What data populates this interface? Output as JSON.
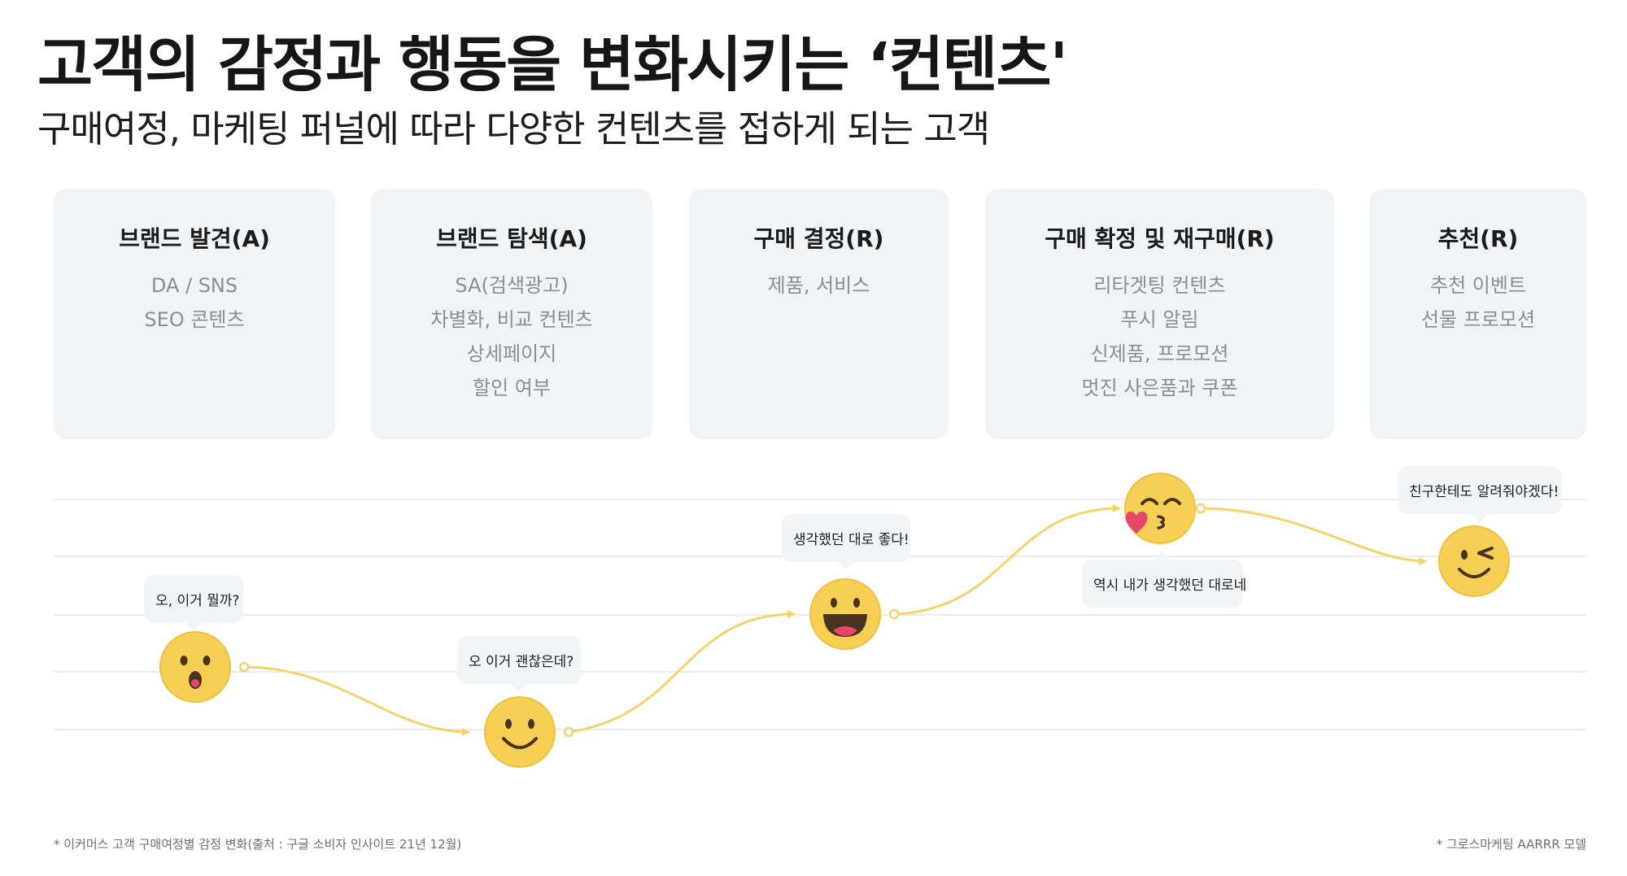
{
  "header": {
    "title": "고객의 감정과 행동을 변화시키는 ‘컨텐츠'",
    "subtitle": "구매여정, 마케팅 퍼널에 따라 다양한 컨텐츠를 접하게 되는 고객"
  },
  "stages": [
    {
      "title": "브랜드 발견(A)",
      "items": [
        "DA / SNS",
        "SEO 콘텐츠"
      ]
    },
    {
      "title": "브랜드 탐색(A)",
      "items": [
        "SA(검색광고)",
        "차별화, 비교 컨텐츠",
        "상세페이지",
        "할인 여부"
      ]
    },
    {
      "title": "구매 결정(R)",
      "items": [
        "제품, 서비스"
      ]
    },
    {
      "title": "구매 확정 및 재구매(R)",
      "items": [
        "리타겟팅 컨텐츠",
        "푸시 알림",
        "신제품, 프로모션",
        "멋진 사은품과 쿠폰"
      ]
    },
    {
      "title": "추천(R)",
      "items": [
        "추천 이벤트",
        "선물 프로모션"
      ]
    }
  ],
  "emotions": [
    {
      "speech": "오, 이거 뭘까?",
      "face": "surprised-face-icon"
    },
    {
      "speech": "오 이거 괜찮은데?",
      "face": "smiling-face-icon"
    },
    {
      "speech": "생각했던 대로 좋다!",
      "face": "grinning-face-icon"
    },
    {
      "speech": "역시 내가 생각했던 대로네",
      "face": "kissing-heart-face-icon"
    },
    {
      "speech": "친구한테도 알려줘야겠다!",
      "face": "winking-face-icon"
    }
  ],
  "footnotes": {
    "left": "* 이커머스 고객 구매여정별 감정 변화(출처 : 구글 소비자 인사이트 21년 12월)",
    "right": "* 그로스마케팅 AARRR 모델"
  },
  "colors": {
    "card_bg": "#f2f3f5",
    "card_item_text": "#8b8e93",
    "emoji_yellow": "#f7cf55",
    "curve": "#f5d36b",
    "heart": "#e8456b",
    "grid_line": "#ececec"
  }
}
